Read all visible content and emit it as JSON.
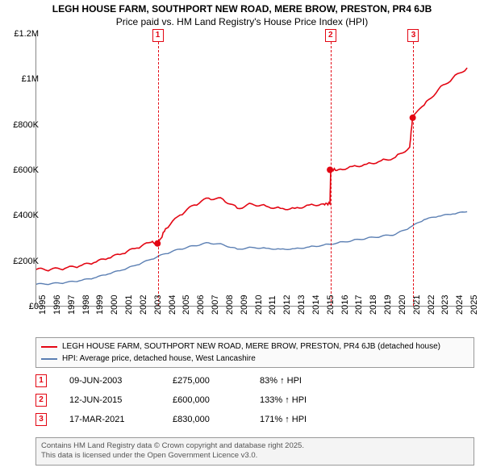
{
  "title": {
    "line1": "LEGH HOUSE FARM, SOUTHPORT NEW ROAD, MERE BROW, PRESTON, PR4 6JB",
    "line2": "Price paid vs. HM Land Registry's House Price Index (HPI)",
    "fontsize": 12
  },
  "chart": {
    "type": "line",
    "background_color": "#ffffff",
    "x_years": [
      1995,
      1996,
      1997,
      1998,
      1999,
      2000,
      2001,
      2002,
      2003,
      2004,
      2005,
      2006,
      2007,
      2008,
      2009,
      2010,
      2011,
      2012,
      2013,
      2014,
      2015,
      2016,
      2017,
      2018,
      2019,
      2020,
      2021,
      2022,
      2023,
      2024,
      2025
    ],
    "xlim": [
      1995,
      2025.5
    ],
    "ylim": [
      0,
      1200000
    ],
    "ytick_step": 200000,
    "ytick_labels": [
      "£0",
      "£200K",
      "£400K",
      "£600K",
      "£800K",
      "£1M",
      "£1.2M"
    ],
    "label_fontsize": 11,
    "series": [
      {
        "name": "price",
        "color": "#e30613",
        "width": 1.6,
        "label": "LEGH HOUSE FARM, SOUTHPORT NEW ROAD, MERE BROW, PRESTON, PR4 6JB (detached house)",
        "jitter": 12000,
        "data": [
          [
            1995,
            160000
          ],
          [
            1996,
            160000
          ],
          [
            1997,
            165000
          ],
          [
            1998,
            175000
          ],
          [
            1999,
            190000
          ],
          [
            2000,
            210000
          ],
          [
            2001,
            230000
          ],
          [
            2002,
            255000
          ],
          [
            2003,
            280000
          ],
          [
            2003.5,
            275000
          ],
          [
            2004,
            340000
          ],
          [
            2005,
            400000
          ],
          [
            2006,
            445000
          ],
          [
            2007,
            475000
          ],
          [
            2008,
            470000
          ],
          [
            2009,
            430000
          ],
          [
            2010,
            450000
          ],
          [
            2011,
            440000
          ],
          [
            2012,
            430000
          ],
          [
            2013,
            430000
          ],
          [
            2014,
            445000
          ],
          [
            2015,
            450000
          ],
          [
            2015.45,
            450000
          ],
          [
            2015.5,
            600000
          ],
          [
            2016,
            600000
          ],
          [
            2017,
            615000
          ],
          [
            2018,
            625000
          ],
          [
            2019,
            640000
          ],
          [
            2020,
            655000
          ],
          [
            2021,
            700000
          ],
          [
            2021.2,
            830000
          ],
          [
            2022,
            885000
          ],
          [
            2023,
            955000
          ],
          [
            2024,
            1005000
          ],
          [
            2025,
            1050000
          ]
        ]
      },
      {
        "name": "hpi",
        "color": "#5b7fb3",
        "width": 1.4,
        "label": "HPI: Average price, detached house, West Lancashire",
        "jitter": 6000,
        "data": [
          [
            1995,
            95000
          ],
          [
            1996,
            97000
          ],
          [
            1997,
            102000
          ],
          [
            1998,
            110000
          ],
          [
            1999,
            122000
          ],
          [
            2000,
            140000
          ],
          [
            2001,
            158000
          ],
          [
            2002,
            180000
          ],
          [
            2003,
            205000
          ],
          [
            2004,
            230000
          ],
          [
            2005,
            250000
          ],
          [
            2006,
            265000
          ],
          [
            2007,
            278000
          ],
          [
            2008,
            270000
          ],
          [
            2009,
            250000
          ],
          [
            2010,
            258000
          ],
          [
            2011,
            254000
          ],
          [
            2012,
            250000
          ],
          [
            2013,
            252000
          ],
          [
            2014,
            260000
          ],
          [
            2015,
            268000
          ],
          [
            2016,
            278000
          ],
          [
            2017,
            288000
          ],
          [
            2018,
            298000
          ],
          [
            2019,
            306000
          ],
          [
            2020,
            315000
          ],
          [
            2021,
            345000
          ],
          [
            2022,
            380000
          ],
          [
            2023,
            395000
          ],
          [
            2024,
            405000
          ],
          [
            2025,
            415000
          ]
        ]
      }
    ],
    "markers": [
      {
        "id": "1",
        "x": 2003.44,
        "color": "#e30613",
        "point_y": 275000
      },
      {
        "id": "2",
        "x": 2015.45,
        "color": "#e30613",
        "point_y": 600000
      },
      {
        "id": "3",
        "x": 2021.21,
        "color": "#e30613",
        "point_y": 830000
      }
    ]
  },
  "legend": {
    "border_color": "#999999",
    "background_color": "#fafafa"
  },
  "footnotes": [
    {
      "id": "1",
      "date": "09-JUN-2003",
      "price": "£275,000",
      "pct": "83% ↑ HPI"
    },
    {
      "id": "2",
      "date": "12-JUN-2015",
      "price": "£600,000",
      "pct": "133% ↑ HPI"
    },
    {
      "id": "3",
      "date": "17-MAR-2021",
      "price": "£830,000",
      "pct": "171% ↑ HPI"
    }
  ],
  "attribution": {
    "line1": "Contains HM Land Registry data © Crown copyright and database right 2025.",
    "line2": "This data is licensed under the Open Government Licence v3.0."
  }
}
